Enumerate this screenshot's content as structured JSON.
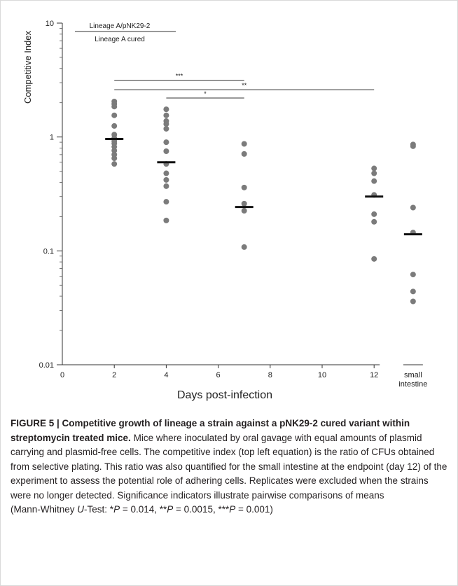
{
  "chart_data": {
    "type": "scatter",
    "y_scale": "log",
    "ylim": [
      0.01,
      10
    ],
    "y_ticks": [
      {
        "value": 10,
        "label": "10"
      },
      {
        "value": 1,
        "label": "1"
      },
      {
        "value": 0.1,
        "label": "0.1"
      },
      {
        "value": 0.01,
        "label": "0.01"
      }
    ],
    "x_ticks": [
      {
        "value": 0,
        "label": "0"
      },
      {
        "value": 2,
        "label": "2"
      },
      {
        "value": 4,
        "label": "4"
      },
      {
        "value": 6,
        "label": "6"
      },
      {
        "value": 8,
        "label": "8"
      },
      {
        "value": 10,
        "label": "10"
      },
      {
        "value": 12,
        "label": "12"
      }
    ],
    "xlim": [
      0,
      14.5
    ],
    "xlabel": "Days post-infection",
    "ylabel": "Competitive Index",
    "legend_formula": {
      "numerator": "Lineage A/pNK29-2",
      "denominator": "Lineage A cured"
    },
    "groups": [
      {
        "x": 2,
        "values": [
          2.05,
          1.95,
          1.85,
          1.55,
          1.25,
          1.05,
          0.98,
          0.92,
          0.88,
          0.82,
          0.76,
          0.7,
          0.65,
          0.58
        ],
        "mean": 0.96
      },
      {
        "x": 4,
        "values": [
          1.75,
          1.55,
          1.38,
          1.3,
          1.18,
          0.9,
          0.75,
          0.58,
          0.48,
          0.42,
          0.37,
          0.27,
          0.185
        ],
        "mean": 0.6
      },
      {
        "x": 7,
        "values": [
          0.87,
          0.71,
          0.36,
          0.26,
          0.225,
          0.108
        ],
        "mean": 0.243
      },
      {
        "x": 12,
        "values": [
          0.53,
          0.48,
          0.41,
          0.31,
          0.21,
          0.18,
          0.085
        ],
        "mean": 0.3
      },
      {
        "x": 13.5,
        "label_lines": [
          "small",
          "intestine"
        ],
        "values": [
          0.86,
          0.83,
          0.24,
          0.145,
          0.062,
          0.044,
          0.036
        ],
        "mean": 0.14
      }
    ],
    "significance": [
      {
        "x1": 2,
        "x2": 7,
        "y": 3.15,
        "label": "***"
      },
      {
        "x1": 2,
        "x2": 12,
        "y": 2.6,
        "label": "**"
      },
      {
        "x1": 4,
        "x2": 7,
        "y": 2.2,
        "label": "*"
      }
    ]
  },
  "caption": {
    "heading": "FIGURE 5 | Competitive growth of lineage a strain against a pNK29-2 cured variant within streptomycin treated mice.",
    "body": "Mice where inoculated by oral gavage with equal amounts of plasmid carrying and plasmid-free cells. The competitive index (top left equation) is the ratio of CFUs obtained from selective plating. This ratio was also quantified for the small intestine at the endpoint (day 12) of the experiment to assess the potential role of adhering cells. Replicates were excluded when the strains were no longer detected. Significance indicators illustrate pairwise comparisons of means",
    "test_prefix": "(Mann-Whitney ",
    "test_letter": "U",
    "test_suffix": "-Test: ",
    "p1_mark": "*",
    "p1_letter": "P",
    "p1_value": " = 0.014, ",
    "p2_mark": "**",
    "p2_letter": "P",
    "p2_value": " = 0.0015, ",
    "p3_mark": "***",
    "p3_letter": "P",
    "p3_value": " = 0.001)"
  }
}
